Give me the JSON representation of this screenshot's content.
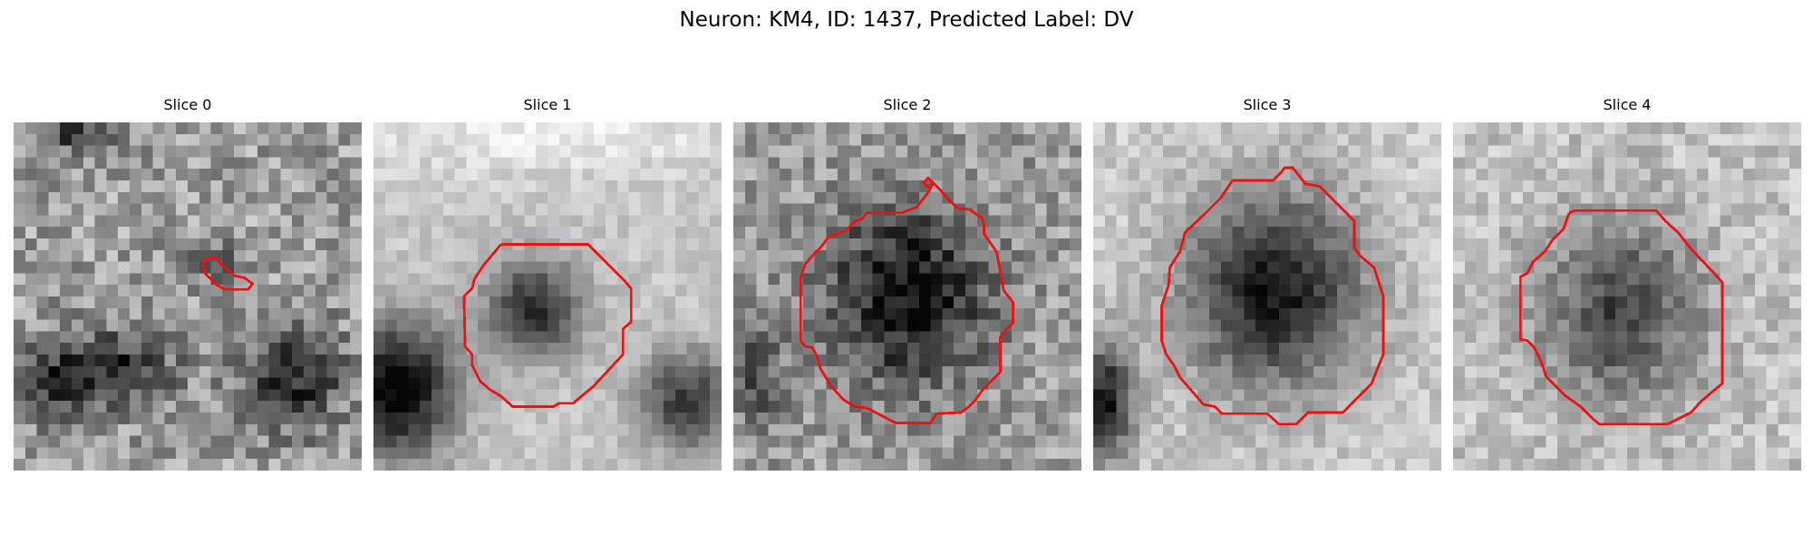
{
  "figure": {
    "title": "Neuron: KM4, ID: 1437, Predicted Label: DV",
    "contour_color": "#ee1111"
  },
  "panels": [
    {
      "title": "Slice 0"
    },
    {
      "title": "Slice 1"
    },
    {
      "title": "Slice 2"
    },
    {
      "title": "Slice 3"
    },
    {
      "title": "Slice 4"
    }
  ]
}
